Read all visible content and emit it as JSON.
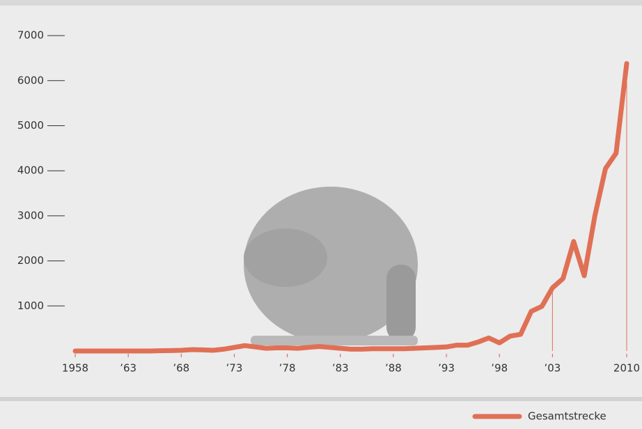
{
  "chart_data": {
    "type": "line",
    "x": [
      1958,
      1959,
      1960,
      1961,
      1962,
      1963,
      1964,
      1965,
      1966,
      1967,
      1968,
      1969,
      1970,
      1971,
      1972,
      1973,
      1974,
      1975,
      1976,
      1977,
      1978,
      1979,
      1980,
      1981,
      1982,
      1983,
      1984,
      1985,
      1986,
      1987,
      1988,
      1989,
      1990,
      1991,
      1992,
      1993,
      1994,
      1995,
      1996,
      1997,
      1998,
      1999,
      2000,
      2001,
      2002,
      2003,
      2004,
      2005,
      2006,
      2007,
      2008,
      2009,
      2010
    ],
    "series": [
      {
        "name": "Gesamtstrecke",
        "color": "#e07055",
        "values": [
          0,
          0,
          0,
          0,
          0,
          0,
          0,
          0,
          5,
          10,
          15,
          30,
          25,
          15,
          40,
          80,
          120,
          90,
          60,
          70,
          70,
          60,
          80,
          100,
          80,
          60,
          40,
          40,
          50,
          50,
          50,
          50,
          60,
          70,
          80,
          90,
          130,
          130,
          200,
          290,
          180,
          330,
          370,
          880,
          990,
          1400,
          1610,
          2430,
          1670,
          3000,
          4050,
          4390,
          6380
        ]
      }
    ],
    "xlim": [
      1958,
      2010
    ],
    "xticks": [
      1958,
      {
        "value": 1963,
        "label": "’63"
      },
      {
        "value": 1968,
        "label": "’68"
      },
      {
        "value": 1973,
        "label": "’73"
      },
      {
        "value": 1978,
        "label": "’78"
      },
      {
        "value": 1983,
        "label": "’83"
      },
      {
        "value": 1988,
        "label": "’88"
      },
      {
        "value": 1993,
        "label": "’93"
      },
      {
        "value": 1998,
        "label": "’98"
      },
      {
        "value": 2003,
        "label": "’03"
      },
      2010
    ],
    "ylim": [
      0,
      7200
    ],
    "yticks": [
      1000,
      2000,
      3000,
      4000,
      5000,
      6000,
      7000
    ]
  }
}
